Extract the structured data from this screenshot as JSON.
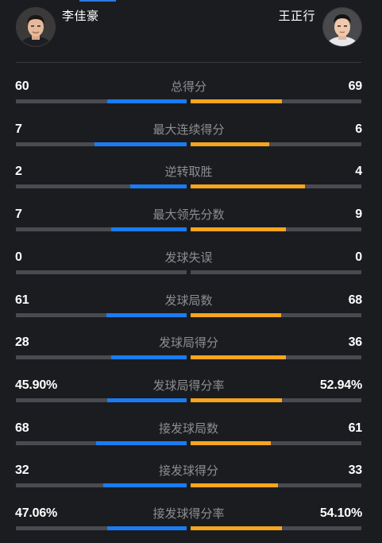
{
  "players": {
    "left": {
      "name": "李佳豪",
      "avatar": "player-photo"
    },
    "right": {
      "name": "王正行",
      "avatar": "player-photo"
    }
  },
  "colors": {
    "background": "#1b1c20",
    "left_bar": "#1a7cf2",
    "right_bar": "#f6a51e",
    "track": "#4a4b50",
    "label": "#8c8d92"
  },
  "stats": [
    {
      "label": "总得分",
      "left": "60",
      "right": "69",
      "left_share": 0.465,
      "right_share": 0.535
    },
    {
      "label": "最大连续得分",
      "left": "7",
      "right": "6",
      "left_share": 0.54,
      "right_share": 0.46
    },
    {
      "label": "逆转取胜",
      "left": "2",
      "right": "4",
      "left_share": 0.33,
      "right_share": 0.67
    },
    {
      "label": "最大领先分数",
      "left": "7",
      "right": "9",
      "left_share": 0.44,
      "right_share": 0.56
    },
    {
      "label": "发球失误",
      "left": "0",
      "right": "0",
      "left_share": 0,
      "right_share": 0
    },
    {
      "label": "发球局数",
      "left": "61",
      "right": "68",
      "left_share": 0.47,
      "right_share": 0.53
    },
    {
      "label": "发球局得分",
      "left": "28",
      "right": "36",
      "left_share": 0.44,
      "right_share": 0.56
    },
    {
      "label": "发球局得分率",
      "left": "45.90%",
      "right": "52.94%",
      "left_share": 0.4645,
      "right_share": 0.5355
    },
    {
      "label": "接发球局数",
      "left": "68",
      "right": "61",
      "left_share": 0.53,
      "right_share": 0.47
    },
    {
      "label": "接发球得分",
      "left": "32",
      "right": "33",
      "left_share": 0.49,
      "right_share": 0.51
    },
    {
      "label": "接发球得分率",
      "left": "47.06%",
      "right": "54.10%",
      "left_share": 0.465,
      "right_share": 0.535
    }
  ]
}
